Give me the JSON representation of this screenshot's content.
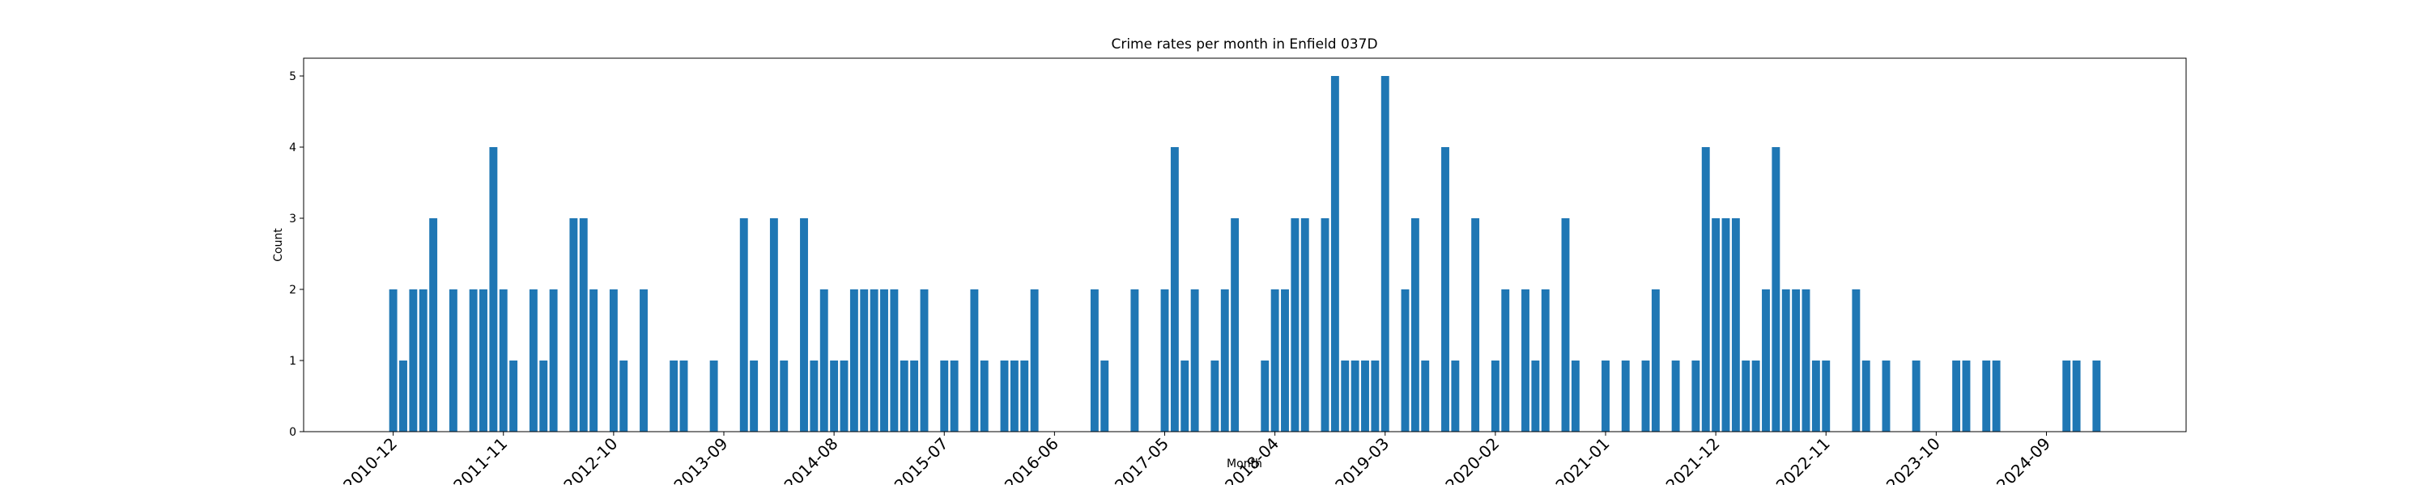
{
  "chart_data": {
    "type": "bar",
    "title": "Crime rates per month in Enfield 037D",
    "x_label": "Month",
    "y_label": "Count",
    "color": "#1f77b4",
    "categories": [
      "2010-12",
      null,
      null,
      null,
      null,
      null,
      null,
      null,
      null,
      null,
      null,
      "2011-11",
      null,
      null,
      null,
      null,
      null,
      null,
      null,
      null,
      null,
      null,
      "2012-10",
      null,
      null,
      null,
      null,
      null,
      null,
      null,
      null,
      null,
      null,
      "2013-09",
      null,
      null,
      null,
      null,
      null,
      null,
      null,
      null,
      null,
      null,
      "2014-08",
      null,
      null,
      null,
      null,
      null,
      null,
      null,
      null,
      null,
      null,
      "2015-07",
      null,
      null,
      null,
      null,
      null,
      null,
      null,
      null,
      null,
      null,
      "2016-06",
      null,
      null,
      null,
      null,
      null,
      null,
      null,
      null,
      null,
      null,
      "2017-05",
      null,
      null,
      null,
      null,
      null,
      null,
      null,
      null,
      null,
      null,
      "2018-04",
      null,
      null,
      null,
      null,
      null,
      null,
      null,
      null,
      null,
      null,
      "2019-03",
      null,
      null,
      null,
      null,
      null,
      null,
      null,
      null,
      null,
      null,
      "2020-02",
      null,
      null,
      null,
      null,
      null,
      null,
      null,
      null,
      null,
      null,
      "2021-01",
      null,
      null,
      null,
      null,
      null,
      null,
      null,
      null,
      null,
      null,
      "2021-12",
      null,
      null,
      null,
      null,
      null,
      null,
      null,
      null,
      null,
      null,
      "2022-11",
      null,
      null,
      null,
      null,
      null,
      null,
      null,
      null,
      null,
      null,
      "2023-10",
      null,
      null,
      null,
      null,
      null,
      null,
      null,
      null,
      null,
      null,
      "2024-09",
      null,
      null,
      null,
      null,
      null
    ],
    "values": [
      2,
      1,
      2,
      2,
      3,
      0,
      2,
      0,
      2,
      2,
      4,
      2,
      1,
      0,
      2,
      1,
      2,
      0,
      3,
      3,
      2,
      0,
      2,
      1,
      0,
      2,
      0,
      0,
      1,
      1,
      0,
      0,
      1,
      0,
      0,
      3,
      1,
      0,
      3,
      1,
      0,
      3,
      1,
      2,
      1,
      1,
      2,
      2,
      2,
      2,
      2,
      1,
      1,
      2,
      0,
      1,
      1,
      0,
      2,
      1,
      0,
      1,
      1,
      1,
      2,
      0,
      0,
      0,
      0,
      0,
      2,
      1,
      0,
      0,
      2,
      0,
      0,
      2,
      4,
      1,
      2,
      0,
      1,
      2,
      3,
      0,
      0,
      1,
      2,
      2,
      3,
      3,
      0,
      3,
      5,
      1,
      1,
      1,
      1,
      5,
      0,
      2,
      3,
      1,
      0,
      4,
      1,
      0,
      3,
      0,
      1,
      2,
      0,
      2,
      1,
      2,
      0,
      3,
      1,
      0,
      0,
      1,
      0,
      1,
      0,
      1,
      2,
      0,
      1,
      0,
      1,
      4,
      3,
      3,
      3,
      1,
      1,
      2,
      4,
      2,
      2,
      2,
      1,
      1,
      0,
      0,
      2,
      1,
      0,
      1,
      0,
      0,
      1,
      0,
      0,
      0,
      1,
      1,
      0,
      1,
      1,
      0,
      0,
      0,
      0,
      0,
      0,
      1,
      1,
      0,
      1
    ],
    "ylim": [
      0,
      5.25
    ],
    "yticks": [
      0,
      1,
      2,
      3,
      4,
      5
    ],
    "grid": false
  }
}
